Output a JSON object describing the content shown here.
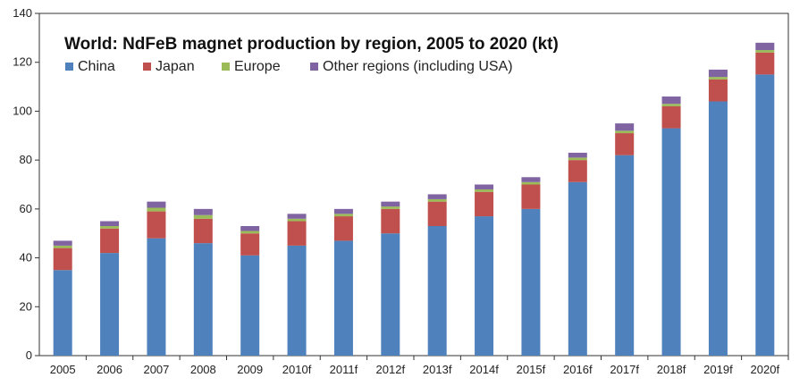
{
  "chart_data": {
    "type": "bar",
    "stacked": true,
    "title": "World: NdFeB magnet production by region, 2005 to 2020 (kt)",
    "xlabel": "",
    "ylabel": "",
    "ylim": [
      0,
      140
    ],
    "yticks": [
      0,
      20,
      40,
      60,
      80,
      100,
      120,
      140
    ],
    "grid": false,
    "legend_position": "top-left",
    "categories": [
      "2005",
      "2006",
      "2007",
      "2008",
      "2009",
      "2010f",
      "2011f",
      "2012f",
      "2013f",
      "2014f",
      "2015f",
      "2016f",
      "2017f",
      "2018f",
      "2019f",
      "2020f"
    ],
    "series": [
      {
        "name": "China",
        "color": "#4f81bd",
        "values": [
          35,
          42,
          48,
          46,
          41,
          45,
          47,
          50,
          53,
          57,
          60,
          71,
          82,
          93,
          104,
          115
        ]
      },
      {
        "name": "Japan",
        "color": "#c0504d",
        "values": [
          9,
          10,
          11,
          10,
          9,
          10,
          10,
          10,
          10,
          10,
          10,
          9,
          9,
          9,
          9,
          9
        ]
      },
      {
        "name": "Europe",
        "color": "#9bbb59",
        "values": [
          1,
          1,
          1.5,
          1.5,
          1,
          1,
          1,
          1,
          1,
          1,
          1,
          1,
          1,
          1,
          1,
          1
        ]
      },
      {
        "name": "Other regions (including USA)",
        "color": "#8064a2",
        "values": [
          2,
          2,
          2.5,
          2.5,
          2,
          2,
          2,
          2,
          2,
          2,
          2,
          2,
          3,
          3,
          3,
          3
        ]
      }
    ]
  }
}
